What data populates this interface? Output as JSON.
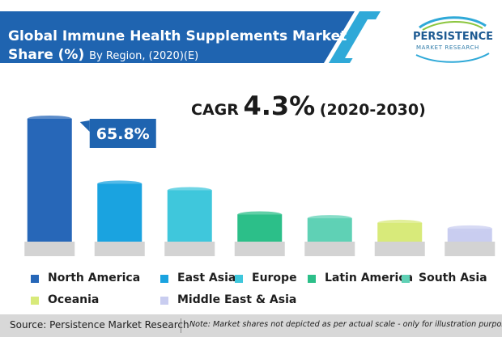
{
  "header": {
    "title": "Global Immune Health Supplements Market Share (%)",
    "subtitle": "By Region, (2020)(E)"
  },
  "logo": {
    "line1": "PERSISTENCE",
    "line2": "MARKET RESEARCH"
  },
  "cagr": {
    "label": "CAGR",
    "value": "4.3%",
    "period": "(2020-2030)"
  },
  "colors": {
    "banner": "#1f64b0",
    "banner_accent": "#2fa9d8",
    "base": "#d3d3d3",
    "callout": "#1f64b0"
  },
  "chart_data": {
    "type": "bar",
    "categories": [
      "North America",
      "East Asia",
      "Europe",
      "Latin America",
      "South Asia",
      "Oceania",
      "Middle East & Asia"
    ],
    "values": [
      65.8,
      31,
      27.5,
      14.5,
      12.5,
      10,
      7
    ],
    "colors": [
      "#2767b8",
      "#1aa3e0",
      "#3fc7dc",
      "#2cbf89",
      "#5fd1b5",
      "#d8ea7a",
      "#c9cdf0"
    ],
    "data_labels": [
      {
        "category": "North America",
        "text": "65.8%"
      }
    ],
    "ylim": [
      0,
      65.8
    ],
    "legend_position": "bottom"
  },
  "legend": {
    "items": [
      {
        "label": "North America",
        "color": "#2767b8"
      },
      {
        "label": "East Asia",
        "color": "#1aa3e0"
      },
      {
        "label": "Europe",
        "color": "#3fc7dc"
      },
      {
        "label": "Latin America",
        "color": "#2cbf89"
      },
      {
        "label": "South Asia",
        "color": "#5fd1b5"
      },
      {
        "label": "Oceania",
        "color": "#d8ea7a"
      },
      {
        "label": "Middle East & Asia",
        "color": "#c9cdf0"
      }
    ]
  },
  "footer": {
    "source": "Source: Persistence Market Research",
    "note": "Note: Market shares not depicted as per actual scale - only for illustration purposes"
  }
}
